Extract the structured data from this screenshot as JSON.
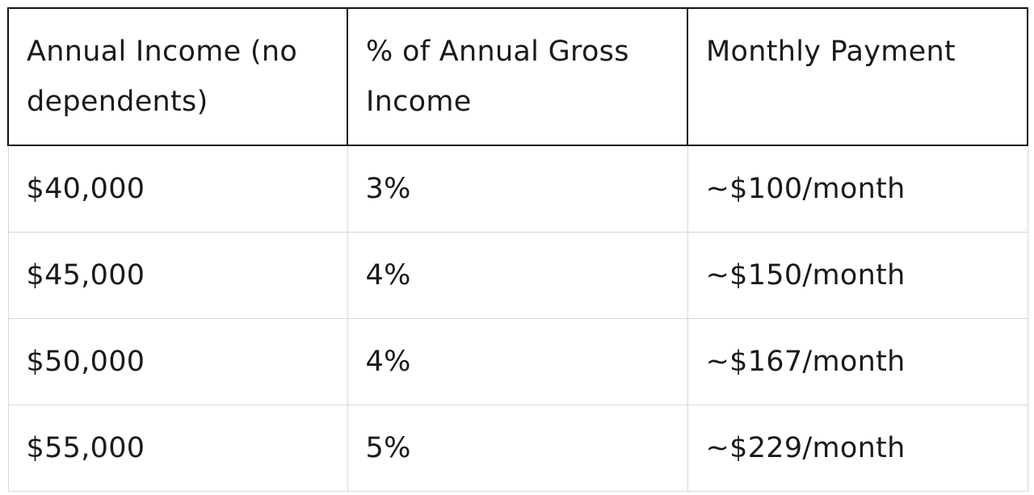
{
  "table": {
    "headers": [
      "Annual Income (no dependents)",
      "% of Annual Gross Income",
      "Monthly Payment"
    ],
    "rows": [
      [
        "$40,000",
        "3%",
        "~$100/month"
      ],
      [
        "$45,000",
        "4%",
        "~$150/month"
      ],
      [
        "$50,000",
        "4%",
        "~$167/month"
      ],
      [
        "$55,000",
        "5%",
        "~$229/month"
      ]
    ]
  }
}
